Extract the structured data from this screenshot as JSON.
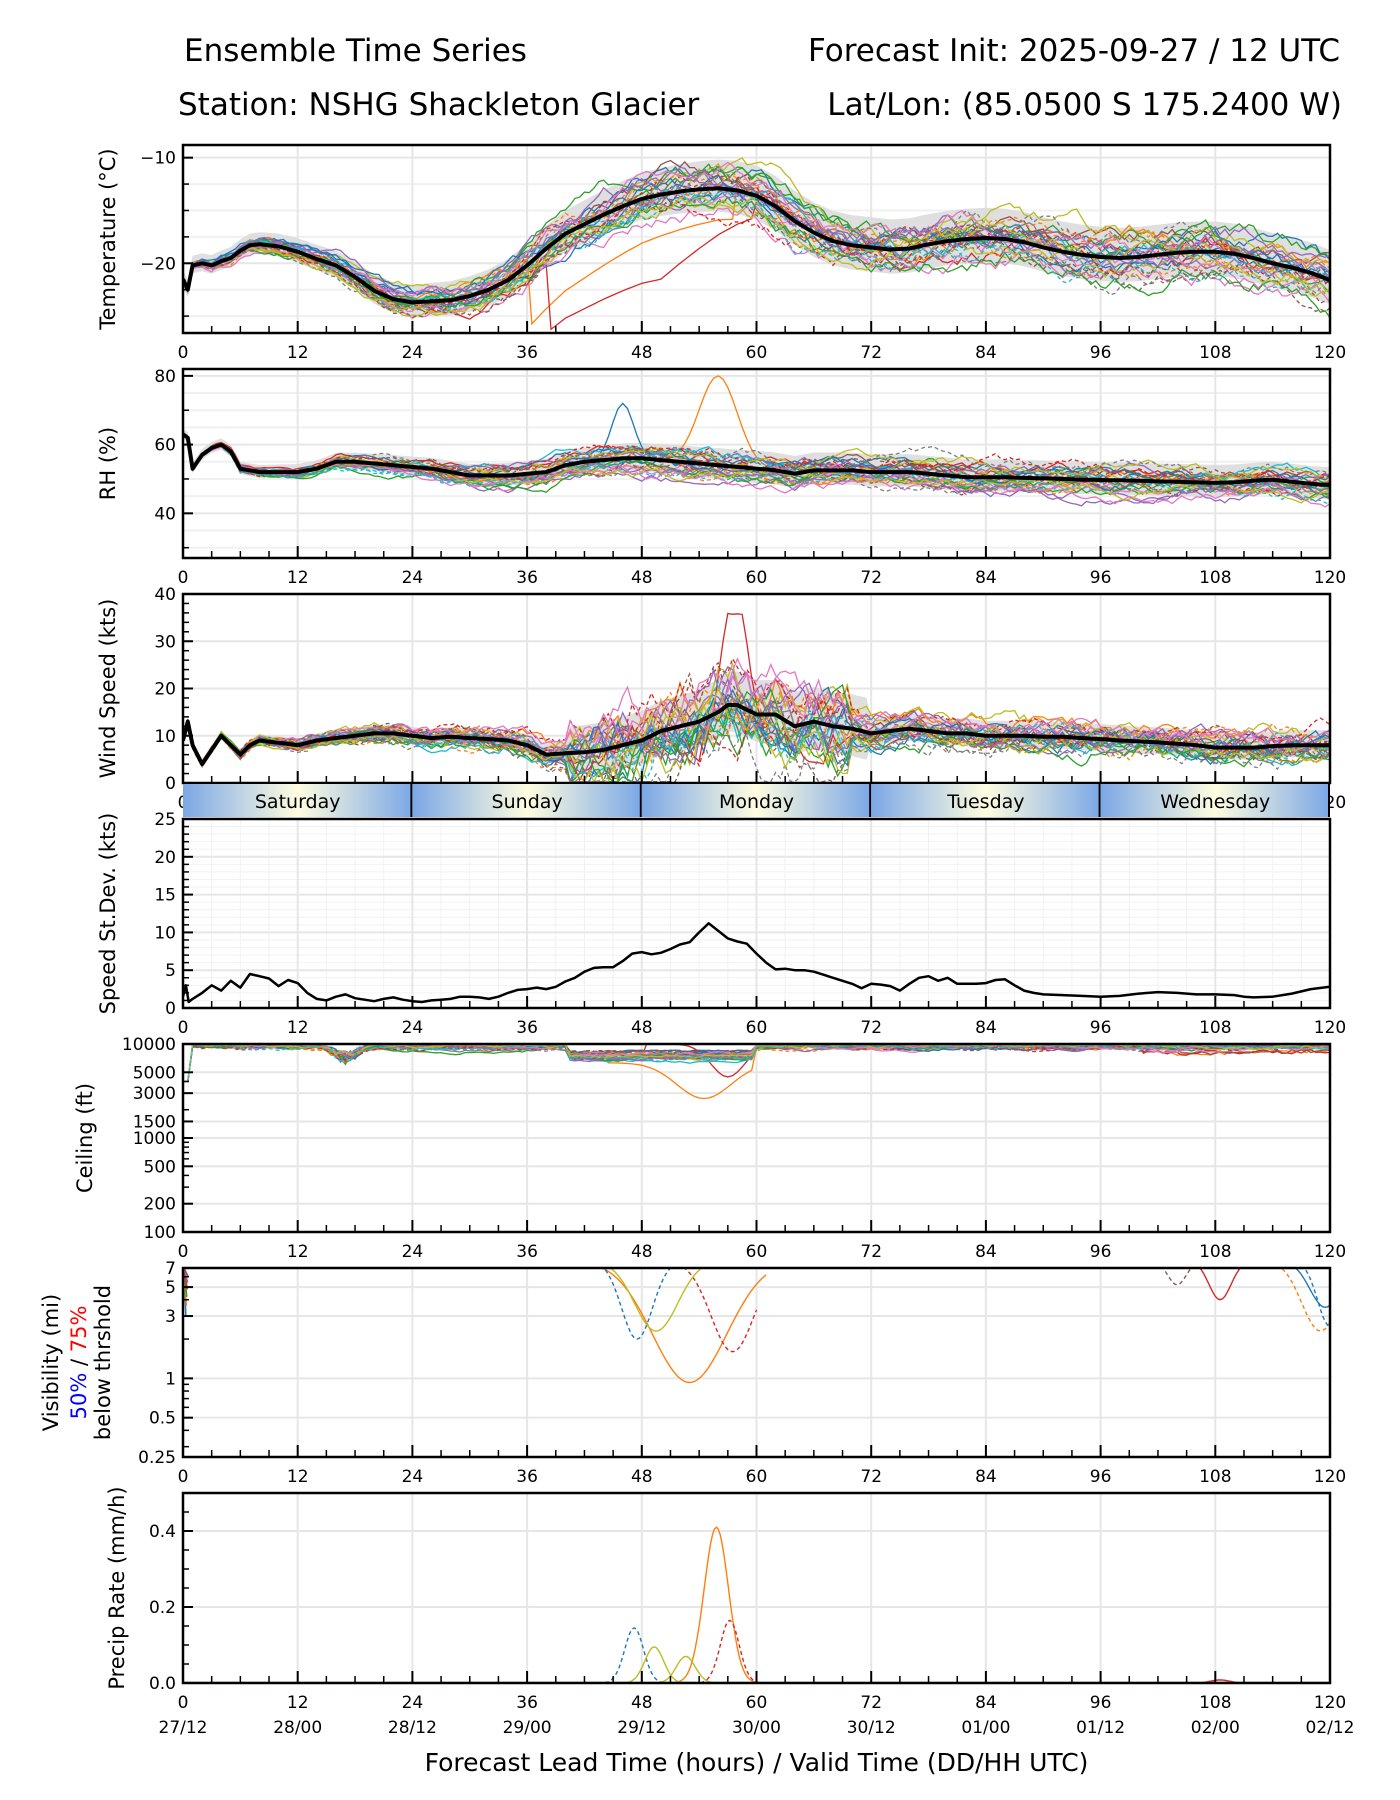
{
  "header": {
    "title_left": "Ensemble Time Series",
    "title_right": "Forecast Init: 2025-09-27 / 12 UTC",
    "station": "Station: NSHG Shackleton Glacier",
    "latlon": "Lat/Lon: (85.0500 S 175.2400 W)"
  },
  "chart_data": {
    "type": "line",
    "x_ticks": [
      0,
      12,
      24,
      36,
      48,
      60,
      72,
      84,
      96,
      108,
      120
    ],
    "x_valid_labels": [
      "27/12",
      "28/00",
      "28/12",
      "29/00",
      "29/12",
      "30/00",
      "30/12",
      "01/00",
      "01/12",
      "02/00",
      "02/12"
    ],
    "xlabel": "Forecast Lead Time (hours) / Valid Time (DD/HH UTC)",
    "xlim": [
      0,
      120
    ],
    "day_bands": [
      {
        "label": "Saturday",
        "start": 0,
        "end": 24
      },
      {
        "label": "Sunday",
        "start": 24,
        "end": 48
      },
      {
        "label": "Monday",
        "start": 48,
        "end": 72
      },
      {
        "label": "Tuesday",
        "start": 72,
        "end": 96
      },
      {
        "label": "Wednesday",
        "start": 96,
        "end": 120
      }
    ],
    "ensemble_members": 30,
    "panels": [
      {
        "id": "temperature",
        "ylabel": "Temperature (°C)",
        "ylim": [
          -26.6,
          -8.8
        ],
        "yticks": [
          -20,
          -10
        ],
        "ytick_labels": [
          "−20",
          "−10"
        ],
        "mean_x": [
          0,
          0.5,
          1,
          2,
          3,
          4,
          5,
          6,
          7,
          8,
          10,
          12,
          14,
          16,
          18,
          20,
          22,
          24,
          26,
          28,
          30,
          32,
          34,
          36,
          38,
          40,
          42,
          44,
          46,
          48,
          50,
          52,
          54,
          56,
          58,
          60,
          62,
          64,
          66,
          68,
          70,
          72,
          74,
          76,
          78,
          80,
          82,
          84,
          86,
          88,
          90,
          92,
          94,
          96,
          98,
          100,
          102,
          104,
          106,
          108,
          110,
          112,
          114,
          116,
          118,
          120
        ],
        "mean_y": [
          -21.5,
          -22.5,
          -20.2,
          -20,
          -20.2,
          -19.8,
          -19.5,
          -18.8,
          -18.3,
          -18.2,
          -18.4,
          -18.9,
          -19.6,
          -20.2,
          -21.3,
          -22.6,
          -23.4,
          -23.7,
          -23.6,
          -23.5,
          -23.1,
          -22.5,
          -21.6,
          -20.2,
          -18.6,
          -17.2,
          -16.3,
          -15.4,
          -14.6,
          -13.9,
          -13.5,
          -13.2,
          -13.0,
          -12.9,
          -13.1,
          -13.6,
          -14.6,
          -16.0,
          -17.1,
          -17.9,
          -18.3,
          -18.5,
          -18.7,
          -18.6,
          -18.2,
          -17.9,
          -17.7,
          -17.6,
          -17.7,
          -18.0,
          -18.5,
          -18.9,
          -19.2,
          -19.4,
          -19.5,
          -19.4,
          -19.2,
          -19.0,
          -18.9,
          -18.9,
          -19.1,
          -19.5,
          -20.0,
          -20.4,
          -20.9,
          -21.6
        ],
        "spread": 2.2
      },
      {
        "id": "rh",
        "ylabel": "RH (%)",
        "ylim": [
          27,
          82
        ],
        "yticks": [
          40,
          60,
          80
        ],
        "ytick_labels": [
          "40",
          "60",
          "80"
        ],
        "mean_x": [
          0,
          0.5,
          1,
          2,
          3,
          4,
          5,
          6,
          8,
          10,
          12,
          14,
          16,
          18,
          20,
          22,
          24,
          26,
          28,
          30,
          32,
          34,
          36,
          38,
          40,
          42,
          44,
          46,
          48,
          50,
          52,
          54,
          56,
          58,
          60,
          62,
          64,
          66,
          68,
          70,
          72,
          74,
          76,
          78,
          80,
          82,
          84,
          86,
          88,
          90,
          92,
          94,
          96,
          98,
          100,
          102,
          104,
          106,
          108,
          110,
          112,
          114,
          116,
          118,
          120
        ],
        "mean_y": [
          63,
          62,
          53,
          57,
          59,
          60,
          58,
          53,
          52,
          52,
          52,
          53,
          55,
          55,
          54.5,
          54,
          53.5,
          53,
          52,
          51,
          51,
          51,
          51.5,
          52,
          54,
          55,
          55.5,
          56,
          56,
          55.5,
          55,
          54.5,
          54,
          53.5,
          53,
          52.5,
          51.5,
          52.5,
          52.5,
          52.5,
          52,
          52,
          52,
          51.5,
          51,
          50.5,
          50.5,
          50.5,
          50.3,
          50.2,
          50,
          49.8,
          49.7,
          49.6,
          49.5,
          49.3,
          49.2,
          49.0,
          48.9,
          49.0,
          49.5,
          49.8,
          49.2,
          48.6,
          48.2
        ],
        "spread": 4,
        "notable_member_peak": {
          "x": 56,
          "y": 80.5
        }
      },
      {
        "id": "wind",
        "ylabel": "Wind Speed (kts)",
        "ylim": [
          0,
          40
        ],
        "yticks": [
          0,
          10,
          20,
          30,
          40
        ],
        "ytick_labels": [
          "0",
          "10",
          "20",
          "30",
          "40"
        ],
        "mean_x": [
          0,
          0.5,
          1,
          2,
          3,
          4,
          5,
          6,
          7,
          8,
          10,
          12,
          14,
          16,
          18,
          20,
          22,
          24,
          26,
          28,
          30,
          32,
          34,
          36,
          38,
          40,
          42,
          44,
          46,
          48,
          50,
          52,
          54,
          56,
          57,
          58,
          60,
          62,
          64,
          66,
          68,
          70,
          72,
          74,
          76,
          78,
          80,
          82,
          84,
          86,
          88,
          90,
          92,
          94,
          96,
          98,
          100,
          102,
          104,
          106,
          108,
          110,
          112,
          114,
          116,
          118,
          120
        ],
        "mean_y": [
          9,
          13,
          8,
          4,
          7,
          10,
          8,
          6,
          8,
          9,
          8.5,
          8,
          9,
          9.5,
          10,
          10.5,
          10.5,
          10,
          9.5,
          9.8,
          9.5,
          9.3,
          9,
          8,
          6,
          6.3,
          6.5,
          7,
          8,
          9,
          11,
          12,
          13,
          15,
          16.5,
          16.5,
          14.5,
          14.5,
          12,
          13,
          12,
          11.5,
          10.5,
          11,
          11.5,
          11,
          10.5,
          10.5,
          10,
          10,
          10,
          9.8,
          9.8,
          9.5,
          9.3,
          9,
          8.8,
          8.6,
          8.3,
          8,
          7.5,
          7.5,
          7.5,
          7.8,
          8,
          8,
          8
        ],
        "spread": 3.5,
        "notable_member_peak": {
          "x": 58,
          "y": 39.5
        }
      },
      {
        "id": "stdev",
        "ylabel": "Speed St.Dev. (kts)",
        "ylim": [
          0,
          25
        ],
        "yticks": [
          0,
          5,
          10,
          15,
          20,
          25
        ],
        "ytick_labels": [
          "0",
          "5",
          "10",
          "15",
          "20",
          "25"
        ],
        "mean_x": [
          0,
          0.3,
          0.6,
          1,
          2,
          3,
          4,
          5,
          6,
          7,
          8,
          9,
          10,
          11,
          12,
          13,
          14,
          15,
          16,
          17,
          18,
          19,
          20,
          21,
          22,
          23,
          24,
          25,
          26,
          27,
          28,
          29,
          30,
          31,
          32,
          33,
          34,
          35,
          36,
          37,
          38,
          39,
          40,
          41,
          42,
          43,
          44,
          45,
          46,
          47,
          48,
          49,
          50,
          51,
          52,
          53,
          54,
          55,
          56,
          57,
          58,
          59,
          60,
          61,
          62,
          63,
          64,
          65,
          66,
          67,
          68,
          69,
          70,
          71,
          72,
          73,
          74,
          75,
          76,
          77,
          78,
          79,
          80,
          81,
          82,
          83,
          84,
          85,
          86,
          87,
          88,
          89,
          90,
          92,
          94,
          96,
          98,
          100,
          102,
          104,
          106,
          108,
          110,
          111,
          112,
          114,
          116,
          118,
          120
        ],
        "mean_y": [
          1.5,
          3,
          0.8,
          1.2,
          2,
          3,
          2.3,
          3.6,
          2.7,
          4.5,
          4.2,
          3.9,
          2.9,
          3.7,
          3.3,
          2,
          1.2,
          1,
          1.5,
          1.8,
          1.3,
          1.1,
          0.9,
          1.2,
          1.4,
          1.1,
          0.9,
          0.8,
          1,
          1.1,
          1.2,
          1.5,
          1.5,
          1.4,
          1.2,
          1.5,
          2,
          2.4,
          2.5,
          2.7,
          2.5,
          2.8,
          3.5,
          4,
          4.8,
          5.3,
          5.4,
          5.4,
          6.2,
          7.2,
          7.4,
          7.1,
          7.3,
          7.8,
          8.4,
          8.7,
          10,
          11.2,
          10.2,
          9.2,
          8.8,
          8.5,
          7.2,
          6,
          5.1,
          5.2,
          5,
          5,
          4.8,
          4.4,
          4,
          3.6,
          3.2,
          2.6,
          3.2,
          3.1,
          2.9,
          2.3,
          3.2,
          4,
          4.2,
          3.6,
          4,
          3.2,
          3.2,
          3.2,
          3.3,
          3.7,
          3.8,
          3,
          2.3,
          2,
          1.8,
          1.7,
          1.6,
          1.5,
          1.6,
          1.9,
          2.1,
          2,
          1.8,
          1.8,
          1.7,
          1.5,
          1.4,
          1.5,
          1.9,
          2.5,
          2.8
        ]
      },
      {
        "id": "ceiling",
        "ylabel": "Ceiling (ft)",
        "scale": "log",
        "ylim": [
          100,
          10000
        ],
        "yticks": [
          100,
          200,
          500,
          1000,
          1500,
          3000,
          5000,
          10000
        ],
        "ytick_labels": [
          "100",
          "200",
          "500",
          "1000",
          "1500",
          "3000",
          "5000",
          "10000"
        ]
      },
      {
        "id": "visibility",
        "ylabel_lines": [
          "Visibility (mi)",
          "below thrshold"
        ],
        "ylabel_50": "50%",
        "ylabel_sep": " / ",
        "ylabel_75": "75%",
        "scale": "log",
        "ylim": [
          0.25,
          7
        ],
        "yticks": [
          0.25,
          0.5,
          1,
          3,
          5,
          7
        ],
        "ytick_labels": [
          "0.25",
          "0.5",
          "1",
          "3",
          "5",
          "7"
        ],
        "notable_member_min": {
          "x": 55.5,
          "y": 0.93
        }
      },
      {
        "id": "precip",
        "ylabel": "Precip Rate (mm/h)",
        "ylim": [
          0,
          0.5
        ],
        "yticks": [
          0.0,
          0.2,
          0.4
        ],
        "ytick_labels": [
          "0.0",
          "0.2",
          "0.4"
        ],
        "notable_peaks": [
          {
            "x": 55.8,
            "y": 0.41,
            "color": "#ff7f0e",
            "dash": false
          },
          {
            "x": 57.2,
            "y": 0.165,
            "color": "#d62728",
            "dash": true
          },
          {
            "x": 47.2,
            "y": 0.145,
            "color": "#1f77b4",
            "dash": true
          },
          {
            "x": 49.3,
            "y": 0.095,
            "color": "#bcbd22",
            "dash": false
          },
          {
            "x": 52.6,
            "y": 0.07,
            "color": "#bcbd22",
            "dash": false
          },
          {
            "x": 108.5,
            "y": 0.008,
            "color": "#d62728",
            "dash": false
          }
        ]
      }
    ],
    "colors": {
      "mean": "#000000",
      "spread_fill": "#d9d9d9",
      "grid": "#e6e6e6",
      "label_50": "#0000ff",
      "label_75": "#ff0000",
      "day_edge": "#7ba7e6",
      "day_center": "#fffde0",
      "member_palette": [
        "#1f77b4",
        "#ff7f0e",
        "#2ca02c",
        "#d62728",
        "#9467bd",
        "#8c564b",
        "#e377c2",
        "#7f7f7f",
        "#bcbd22",
        "#17becf"
      ]
    }
  }
}
